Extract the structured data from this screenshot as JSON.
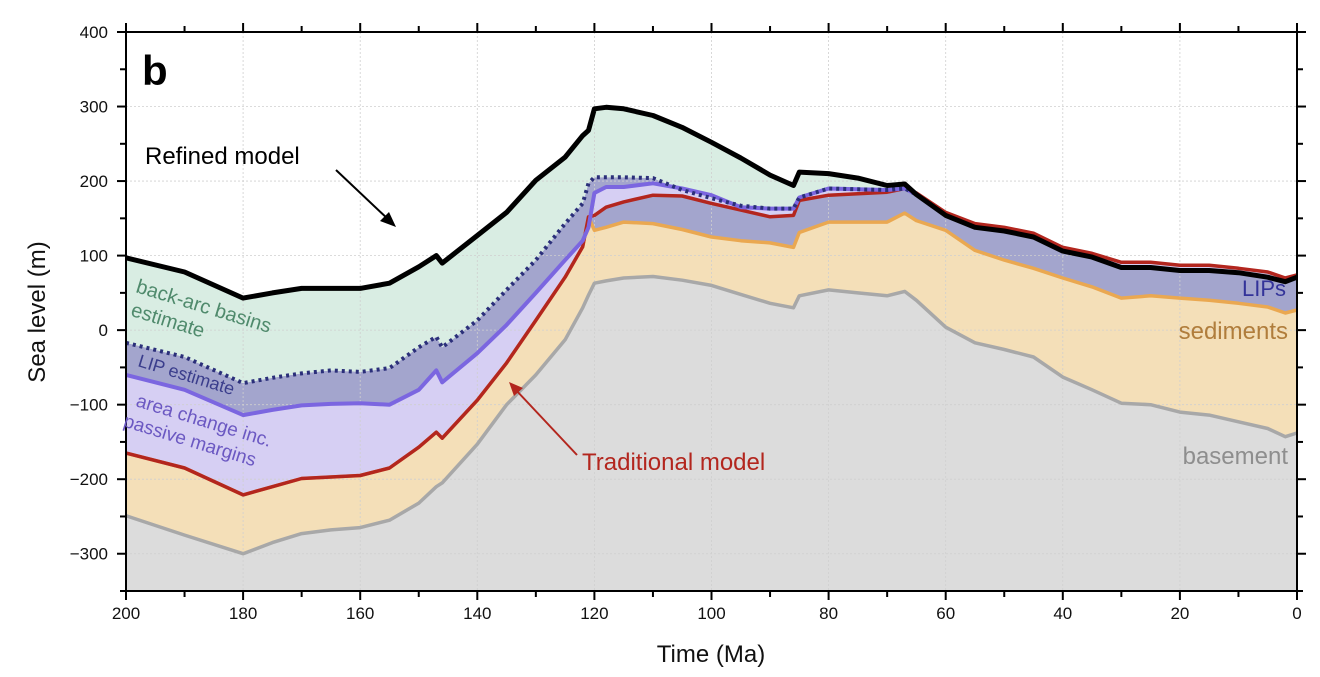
{
  "chart_data": {
    "type": "area",
    "panel_label": "b",
    "xlabel": "Time (Ma)",
    "ylabel": "Sea level (m)",
    "xlim": [
      200,
      0
    ],
    "ylim": [
      -350,
      400
    ],
    "x_reversed": true,
    "xticks": [
      200,
      180,
      160,
      140,
      120,
      100,
      80,
      60,
      40,
      20,
      0
    ],
    "yticks": [
      400,
      300,
      200,
      100,
      0,
      -100,
      -200,
      -300
    ],
    "ytick_labels": [
      "400",
      "300",
      "200",
      "100",
      "0",
      "−100",
      "−200",
      "−300"
    ],
    "grid": true,
    "x": [
      200,
      190,
      180,
      175,
      170,
      165,
      160,
      155,
      150,
      147,
      146,
      140,
      135,
      130,
      125,
      122,
      121,
      120,
      118,
      115,
      110,
      105,
      100,
      95,
      90,
      86,
      85,
      80,
      75,
      70,
      67,
      65,
      60,
      55,
      50,
      45,
      40,
      35,
      30,
      25,
      20,
      15,
      10,
      5,
      2,
      0
    ],
    "series": [
      {
        "key": "basement",
        "color": "#a8a8a8",
        "fill": "#dcdcdc",
        "values": [
          -249,
          -275,
          -300,
          -285,
          -273,
          -268,
          -265,
          -255,
          -232,
          -210,
          -205,
          -153,
          -100,
          -60,
          -13,
          30,
          47,
          63,
          66,
          70,
          72,
          67,
          60,
          48,
          36,
          30,
          46,
          54,
          50,
          46,
          52,
          40,
          4,
          -17,
          -26,
          -36,
          -63,
          -80,
          -98,
          -100,
          -110,
          -114,
          -123,
          -132,
          -143,
          -138
        ]
      },
      {
        "key": "sediments",
        "color": "#eaa851",
        "fill": "#f4dfb8",
        "values": [
          -165,
          -185,
          -221,
          -210,
          -199,
          -197,
          -195,
          -185,
          -157,
          -137,
          -145,
          -94,
          -44,
          13,
          71,
          112,
          152,
          134,
          138,
          145,
          143,
          135,
          125,
          120,
          117,
          111,
          131,
          145,
          145,
          145,
          157,
          147,
          134,
          107,
          94,
          83,
          70,
          58,
          43,
          46,
          43,
          40,
          36,
          31,
          23,
          27
        ]
      },
      {
        "key": "traditional",
        "color": "#b3261e",
        "fill": "#a3a5cd",
        "values": [
          -165,
          -185,
          -221,
          -210,
          -199,
          -197,
          -195,
          -185,
          -157,
          -137,
          -145,
          -94,
          -44,
          13,
          71,
          112,
          152,
          154,
          165,
          172,
          181,
          180,
          170,
          161,
          152,
          154,
          174,
          181,
          183,
          185,
          190,
          184,
          158,
          143,
          138,
          130,
          111,
          103,
          91,
          91,
          87,
          87,
          83,
          78,
          70,
          74
        ]
      },
      {
        "key": "area_change",
        "color": "#7b66e0",
        "fill": "#d6cff3",
        "values": [
          -60,
          -80,
          -114,
          -107,
          -101,
          -99,
          -98,
          -100,
          -80,
          -54,
          -70,
          -31,
          7,
          50,
          94,
          120,
          138,
          184,
          192,
          192,
          197,
          190,
          181,
          165,
          163,
          163,
          178,
          190,
          189,
          188,
          190,
          182,
          154,
          138,
          133,
          125,
          106,
          98,
          84,
          84,
          80,
          80,
          77,
          71,
          65,
          71
        ]
      },
      {
        "key": "lip_estimate",
        "color": "#2b2f7a",
        "fill": "#a3a5cd",
        "values": [
          -17,
          -36,
          -71,
          -64,
          -58,
          -54,
          -56,
          -51,
          -23,
          -9,
          -23,
          13,
          54,
          94,
          143,
          170,
          197,
          205,
          205,
          205,
          204,
          188,
          177,
          167,
          163,
          163,
          178,
          190,
          189,
          188,
          190,
          182,
          154,
          138,
          133,
          125,
          106,
          98,
          84,
          84,
          80,
          80,
          77,
          71,
          65,
          71
        ]
      },
      {
        "key": "refined",
        "color": "#000000",
        "fill": "#d9ede3",
        "values": [
          97,
          78,
          43,
          50,
          56,
          56,
          56,
          63,
          85,
          100,
          90,
          127,
          158,
          201,
          232,
          261,
          268,
          297,
          299,
          297,
          288,
          272,
          252,
          231,
          208,
          194,
          212,
          210,
          204,
          194,
          196,
          182,
          154,
          138,
          133,
          125,
          106,
          98,
          84,
          84,
          80,
          80,
          77,
          71,
          65,
          71
        ]
      }
    ],
    "annotations": {
      "refined_model": "Refined model",
      "traditional_model": "Traditional model",
      "back_arc_line1": "back-arc basins",
      "back_arc_line2": "estimate",
      "lip_estimate": "LIP estimate",
      "area_change_line1": "area change inc.",
      "area_change_line2": "passive margins",
      "lips": "LIPs",
      "sediments": "sediments",
      "basement": "basement"
    },
    "annotation_colors": {
      "back_arc": "#4f8a6c",
      "lip_estimate": "#3a3d8c",
      "area_change": "#6b58c2",
      "traditional": "#b3261e",
      "lips": "#333399",
      "sediments": "#b07d3c",
      "basement": "#8e8e8e"
    }
  }
}
